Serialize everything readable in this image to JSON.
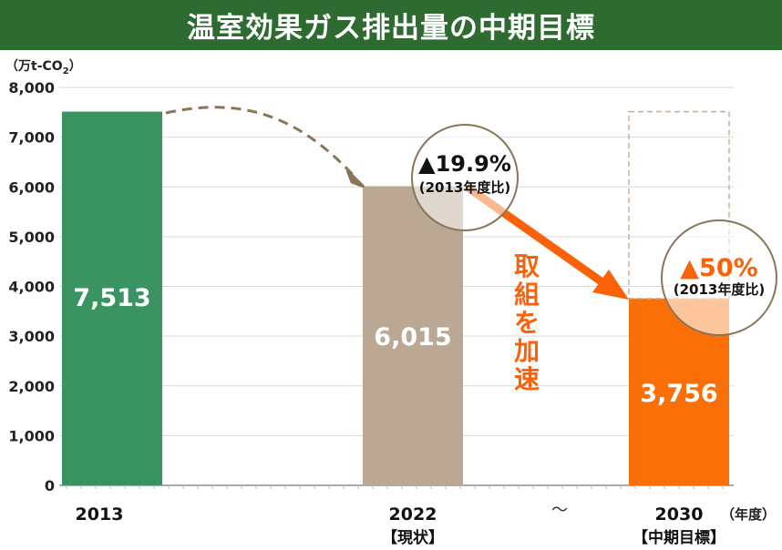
{
  "title": "温室効果ガス排出量の中期目標",
  "chart_data": {
    "type": "bar",
    "title": "温室効果ガス排出量の中期目標",
    "ylabel_prefix": "（万t-CO",
    "ylabel_sub": "2",
    "ylabel_suffix": "）",
    "xlabel": "（年度）",
    "ylim": [
      0,
      8000
    ],
    "yticks": [
      "0",
      "1,000",
      "2,000",
      "3,000",
      "4,000",
      "5,000",
      "6,000",
      "7,000",
      "8,000"
    ],
    "grid": true,
    "categories": [
      "2013",
      "2022",
      "2030"
    ],
    "category_notes": [
      "",
      "【現状】",
      "【中期目標】"
    ],
    "values": [
      7513,
      6015,
      3756
    ],
    "value_labels": [
      "7,513",
      "6,015",
      "3,756"
    ],
    "colors": [
      "#3a9462",
      "#bba894",
      "#fa6f08"
    ],
    "range_marker": "～",
    "annotations": {
      "reduction_2022_pct": "▲19.9%",
      "reduction_2022_basis": "(2013年度比)",
      "reduction_2030_pct": "▲50%",
      "reduction_2030_basis": "(2013年度比)",
      "accelerate_text": "取組を加速"
    }
  }
}
